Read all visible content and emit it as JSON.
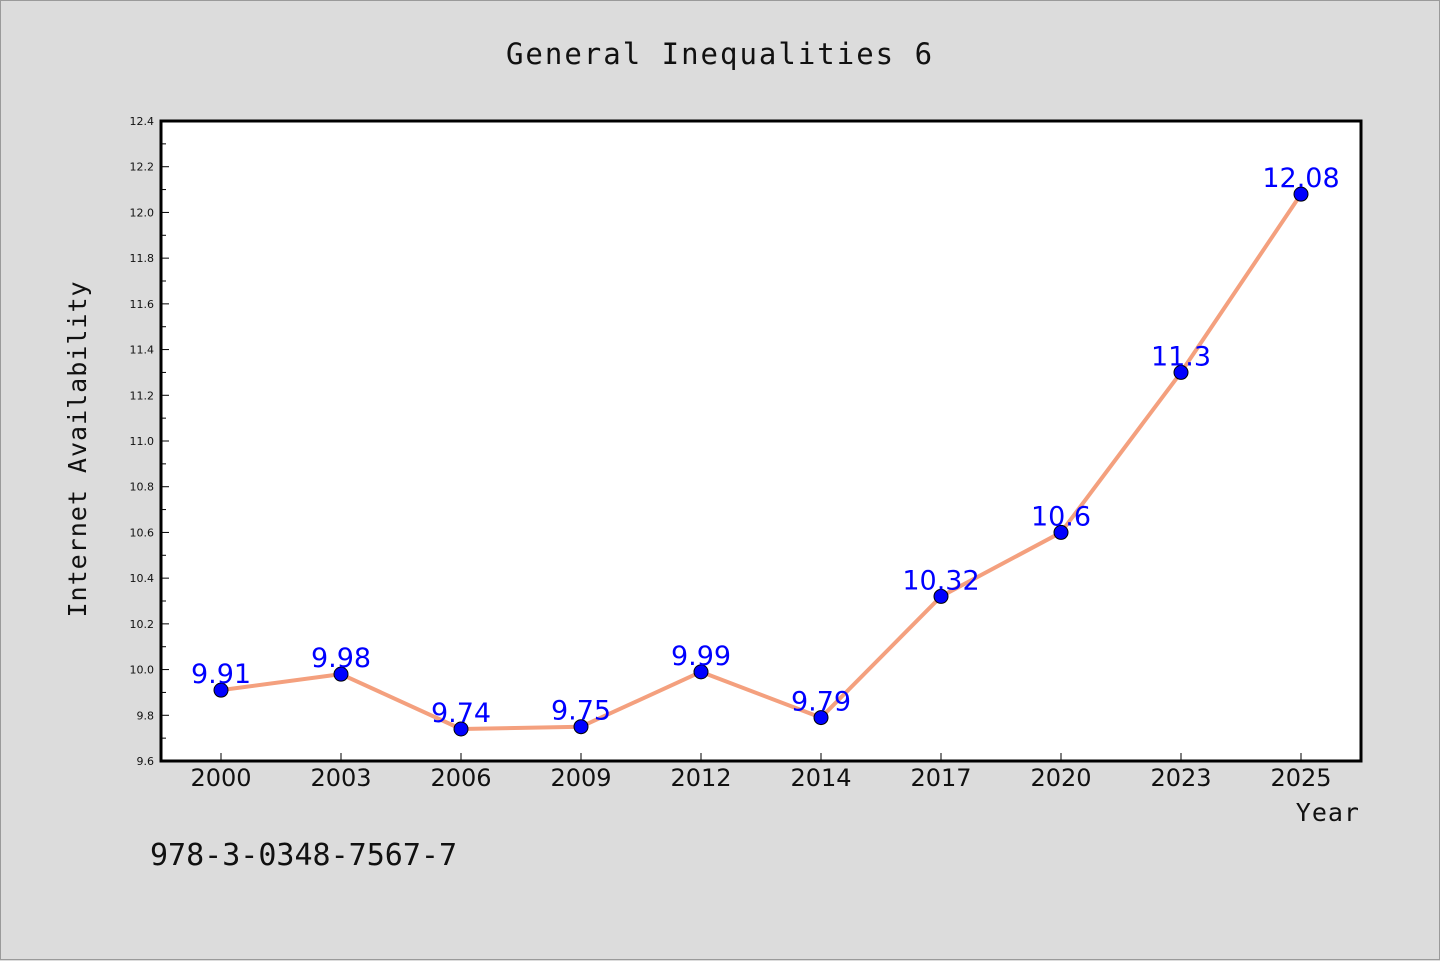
{
  "chart_data": {
    "type": "line",
    "title": "General Inequalities 6",
    "xlabel": "Year",
    "ylabel": "Internet Availability",
    "categories": [
      "2000",
      "2003",
      "2006",
      "2009",
      "2012",
      "2014",
      "2017",
      "2020",
      "2023",
      "2025"
    ],
    "series": [
      {
        "values": [
          9.91,
          9.98,
          9.74,
          9.75,
          9.99,
          9.79,
          10.32,
          10.6,
          11.3,
          12.08
        ],
        "data_labels": [
          "9.91",
          "9.98",
          "9.74",
          "9.75",
          "9.99",
          "9.79",
          "10.32",
          "10.6",
          "11.3",
          "12.08"
        ],
        "line_color": "#f4a07e",
        "marker_color": "#0000ff"
      }
    ],
    "ylim": [
      9.6,
      12.4
    ],
    "yticks": [
      "9.6",
      "9.8",
      "10.0",
      "10.2",
      "10.4",
      "10.6",
      "10.8",
      "11.0",
      "11.2",
      "11.4",
      "11.6",
      "11.8",
      "12.0",
      "12.2",
      "12.4"
    ],
    "grid": false,
    "legend": "none"
  },
  "footer": {
    "text": "978-3-0348-7567-7"
  },
  "colors": {
    "background": "#dcdcdc",
    "plot_background": "#ffffff",
    "line": "#f4a07e",
    "marker": "#0000ff",
    "data_label": "#0000ff"
  }
}
